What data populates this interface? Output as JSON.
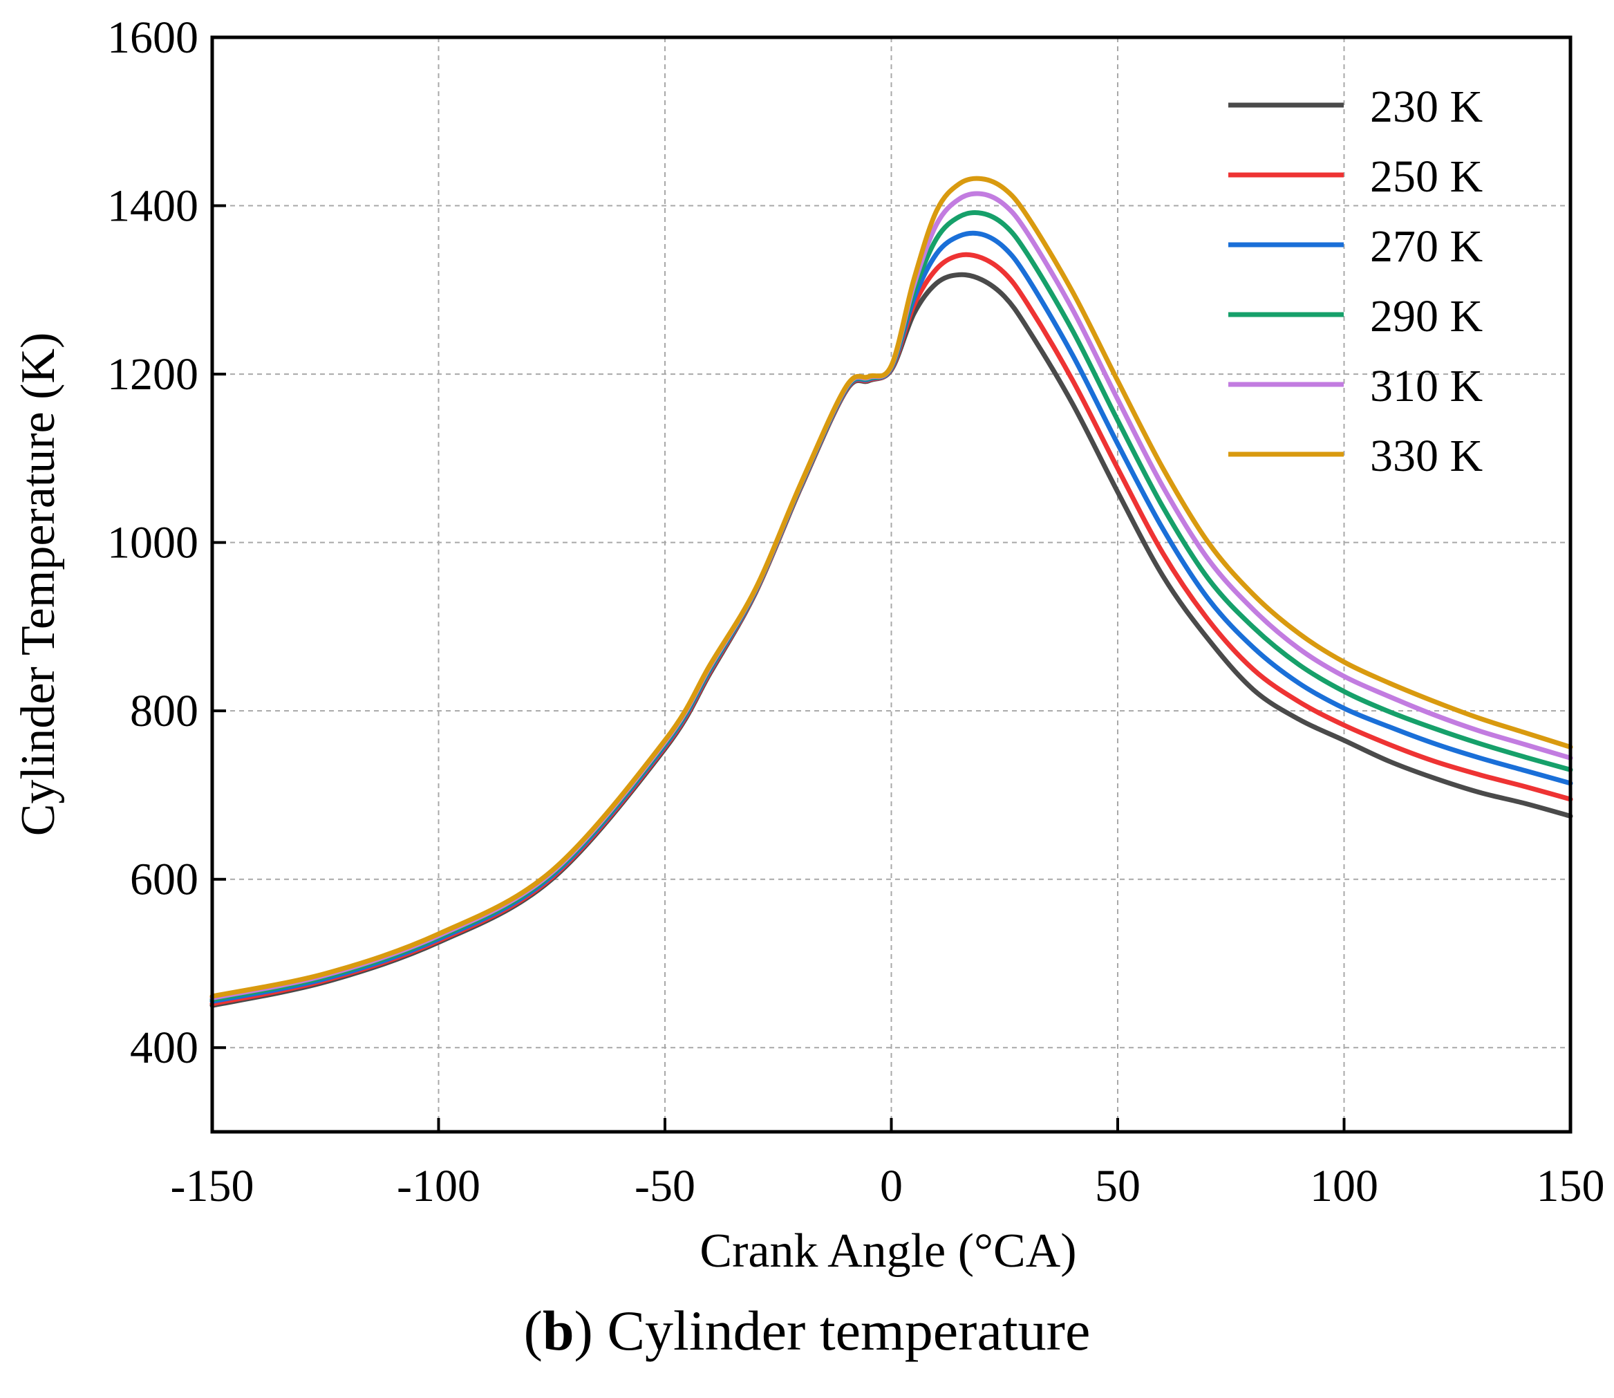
{
  "chart_data": {
    "type": "line",
    "xlabel": "Crank Angle (°CA)",
    "ylabel": "Cylinder Temperature (K)",
    "xlim": [
      -150,
      150
    ],
    "ylim": [
      300,
      1600
    ],
    "xticks": [
      -150,
      -100,
      -50,
      0,
      50,
      100,
      150
    ],
    "yticks": [
      400,
      600,
      800,
      1000,
      1200,
      1400,
      1600
    ],
    "grid": true,
    "legend_position": "top-right",
    "x": [
      -150,
      -125,
      -100,
      -75,
      -50,
      -40,
      -30,
      -20,
      -10,
      -5,
      0,
      5,
      10,
      15,
      20,
      25,
      30,
      40,
      50,
      60,
      70,
      80,
      90,
      100,
      110,
      120,
      130,
      140,
      150
    ],
    "series": [
      {
        "name": "230 K",
        "color": "#4a4a4a",
        "values": [
          450,
          478,
          525,
          600,
          755,
          845,
          940,
          1065,
          1180,
          1192,
          1205,
          1272,
          1308,
          1318,
          1312,
          1292,
          1255,
          1165,
          1060,
          960,
          885,
          825,
          790,
          765,
          740,
          720,
          703,
          690,
          675
        ]
      },
      {
        "name": "250 K",
        "color": "#ee3333",
        "values": [
          452,
          480,
          527,
          602,
          757,
          847,
          941,
          1066,
          1181,
          1193,
          1206,
          1282,
          1325,
          1341,
          1338,
          1320,
          1284,
          1193,
          1088,
          987,
          908,
          849,
          811,
          783,
          760,
          740,
          724,
          710,
          695
        ]
      },
      {
        "name": "270 K",
        "color": "#1a6fd8",
        "values": [
          455,
          482,
          529,
          604,
          759,
          849,
          942,
          1067,
          1182,
          1194,
          1207,
          1290,
          1343,
          1364,
          1366,
          1350,
          1315,
          1223,
          1117,
          1016,
          933,
          875,
          833,
          803,
          781,
          761,
          744,
          729,
          714
        ]
      },
      {
        "name": "290 K",
        "color": "#16a06a",
        "values": [
          457,
          484,
          531,
          606,
          761,
          851,
          943,
          1068,
          1183,
          1195,
          1208,
          1298,
          1361,
          1387,
          1391,
          1377,
          1343,
          1252,
          1145,
          1042,
          957,
          899,
          855,
          823,
          799,
          779,
          761,
          745,
          730
        ]
      },
      {
        "name": "310 K",
        "color": "#c27ce0",
        "values": [
          459,
          486,
          533,
          608,
          763,
          853,
          944,
          1069,
          1184,
          1196,
          1209,
          1306,
          1378,
          1408,
          1414,
          1401,
          1368,
          1277,
          1170,
          1066,
          980,
          920,
          874,
          841,
          817,
          795,
          776,
          760,
          744
        ]
      },
      {
        "name": "330 K",
        "color": "#d99a0f",
        "values": [
          461,
          488,
          535,
          610,
          765,
          855,
          945,
          1070,
          1185,
          1197,
          1210,
          1313,
          1394,
          1426,
          1432,
          1420,
          1388,
          1298,
          1192,
          1088,
          1000,
          938,
          892,
          858,
          833,
          811,
          791,
          774,
          757
        ]
      }
    ]
  },
  "caption": {
    "bold_part": "b",
    "open_paren": "(",
    "close_paren": ")",
    "text": " Cylinder temperature"
  }
}
